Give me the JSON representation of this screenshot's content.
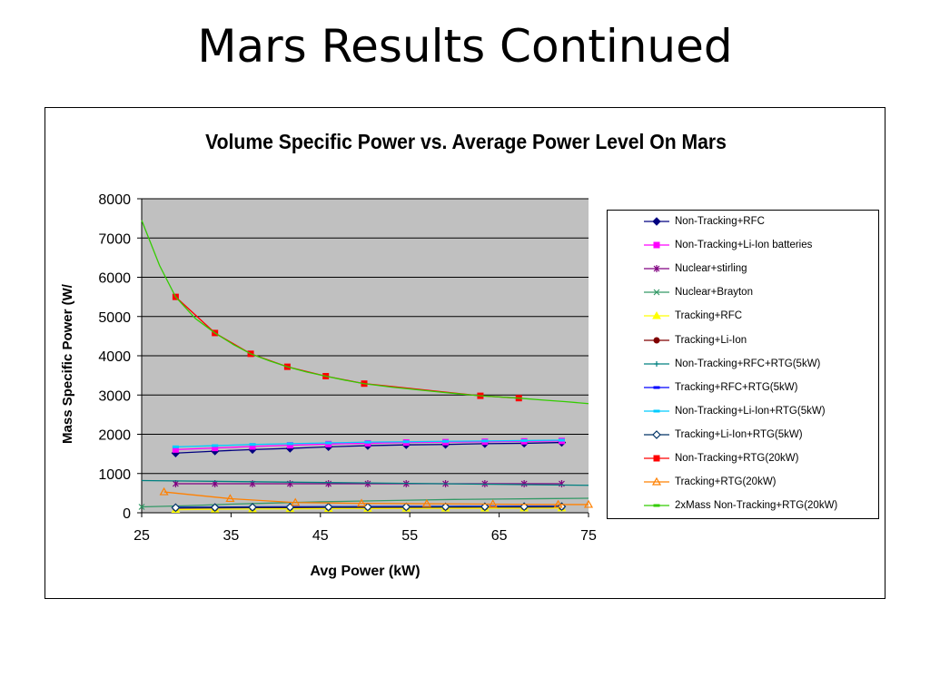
{
  "slide": {
    "title": "Mars Results Continued"
  },
  "chart_data": {
    "type": "line",
    "title": "Volume Specific Power vs. Average Power Level On Mars",
    "xlabel": "Avg Power (kW)",
    "ylabel": "Mass Specific Power (W/",
    "xlim": [
      25,
      75
    ],
    "ylim": [
      0,
      8000
    ],
    "xticks": [
      25,
      35,
      45,
      55,
      65,
      75
    ],
    "yticks": [
      0,
      1000,
      2000,
      3000,
      4000,
      5000,
      6000,
      7000,
      8000
    ],
    "grid": true,
    "plot_background": "#c0c0c0",
    "legend_position": "right",
    "series": [
      {
        "name": "Non-Tracking+RFC",
        "color": "#000080",
        "marker": "diamond",
        "x": [
          28.8,
          33.2,
          37.4,
          41.6,
          45.9,
          50.3,
          54.6,
          59.0,
          63.4,
          67.8,
          72.0
        ],
        "y": [
          1520,
          1570,
          1610,
          1640,
          1680,
          1710,
          1730,
          1740,
          1760,
          1770,
          1790
        ]
      },
      {
        "name": "Non-Tracking+Li-Ion batteries",
        "color": "#ff00ff",
        "marker": "square",
        "x": [
          28.8,
          33.2,
          37.4,
          41.6,
          45.9,
          50.3,
          54.6,
          59.0,
          63.4,
          67.8,
          72.0
        ],
        "y": [
          1610,
          1650,
          1690,
          1720,
          1750,
          1770,
          1790,
          1800,
          1810,
          1820,
          1830
        ]
      },
      {
        "name": "Nuclear+stirling",
        "color": "#800080",
        "marker": "star",
        "x": [
          28.8,
          33.2,
          37.4,
          41.6,
          45.9,
          50.3,
          54.6,
          59.0,
          63.4,
          67.8,
          72.0
        ],
        "y": [
          740,
          740,
          740,
          740,
          740,
          740,
          740,
          740,
          740,
          740,
          740
        ]
      },
      {
        "name": "Nuclear+Brayton",
        "color": "#339966",
        "marker": "x",
        "x": [
          25,
          30,
          35,
          40,
          45,
          50,
          55,
          60,
          65,
          70,
          75
        ],
        "y": [
          150,
          180,
          220,
          250,
          280,
          300,
          320,
          340,
          350,
          360,
          370
        ]
      },
      {
        "name": "Tracking+RFC",
        "color": "#ffff00",
        "marker": "triangle",
        "x": [
          28.8,
          33.2,
          37.4,
          41.6,
          45.9,
          50.3,
          54.6,
          59.0,
          63.4,
          67.8,
          72.0
        ],
        "y": [
          80,
          90,
          95,
          100,
          105,
          108,
          110,
          112,
          114,
          116,
          118
        ]
      },
      {
        "name": "Tracking+Li-Ion",
        "color": "#800000",
        "marker": "circle",
        "x": [
          28.8,
          33.2,
          37.4,
          41.6,
          45.9,
          50.3,
          54.6,
          59.0,
          63.4,
          67.8,
          72.0
        ],
        "y": [
          120,
          125,
          130,
          132,
          135,
          137,
          140,
          142,
          144,
          146,
          148
        ]
      },
      {
        "name": "Non-Tracking+RFC+RTG(5kW)",
        "color": "#008080",
        "marker": "plus",
        "x": [
          25,
          75
        ],
        "y": [
          820,
          700
        ]
      },
      {
        "name": "Tracking+RFC+RTG(5kW)",
        "color": "#0000ff",
        "marker": "dash",
        "x": [
          28.8,
          33.2,
          37.4,
          41.6,
          45.9,
          50.3,
          54.6,
          59.0,
          63.4,
          67.8,
          72.0
        ],
        "y": [
          140,
          145,
          150,
          152,
          155,
          157,
          160,
          162,
          164,
          166,
          168
        ]
      },
      {
        "name": "Non-Tracking+Li-Ion+RTG(5kW)",
        "color": "#00ccff",
        "marker": "dash",
        "x": [
          28.8,
          33.2,
          37.4,
          41.6,
          45.9,
          50.3,
          54.6,
          59.0,
          63.4,
          67.8,
          72.0
        ],
        "y": [
          1680,
          1710,
          1740,
          1760,
          1780,
          1800,
          1810,
          1820,
          1830,
          1840,
          1850
        ]
      },
      {
        "name": "Tracking+Li-Ion+RTG(5kW)",
        "color": "#003366",
        "marker": "diamond-open",
        "x": [
          28.8,
          33.2,
          37.4,
          41.6,
          45.9,
          50.3,
          54.6,
          59.0,
          63.4,
          67.8,
          72.0
        ],
        "y": [
          130,
          135,
          140,
          142,
          145,
          147,
          150,
          152,
          154,
          156,
          158
        ]
      },
      {
        "name": "Non-Tracking+RTG(20kW)",
        "color": "#ff0000",
        "marker": "square",
        "x": [
          28.8,
          33.2,
          37.2,
          41.3,
          45.6,
          49.9,
          62.9,
          67.2
        ],
        "y": [
          5500,
          4580,
          4050,
          3720,
          3480,
          3290,
          2980,
          2920
        ]
      },
      {
        "name": "Tracking+RTG(20kW)",
        "color": "#ff8000",
        "marker": "triangle-open",
        "x": [
          27.5,
          34.9,
          42.2,
          49.6,
          56.9,
          64.3,
          71.6,
          75
        ],
        "y": [
          530,
          360,
          260,
          240,
          230,
          220,
          210,
          210
        ]
      },
      {
        "name": "2xMass Non-Tracking+RTG(20kW)",
        "color": "#33cc00",
        "marker": "dash",
        "x": [
          25,
          27,
          28.8,
          31,
          33.2,
          35.3,
          37.2,
          39.3,
          41.3,
          43.4,
          45.6,
          47.7,
          49.9,
          53,
          56,
          59,
          62.9,
          65,
          67.2,
          70,
          72.5,
          75
        ],
        "y": [
          7450,
          6300,
          5500,
          4950,
          4580,
          4280,
          4050,
          3870,
          3720,
          3590,
          3480,
          3380,
          3290,
          3200,
          3130,
          3060,
          2980,
          2950,
          2920,
          2870,
          2830,
          2780
        ]
      }
    ]
  }
}
